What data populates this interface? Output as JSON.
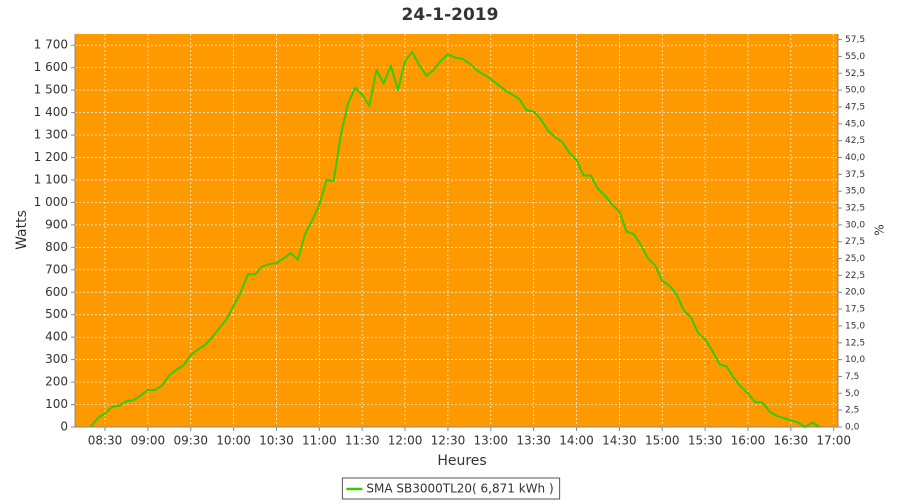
{
  "chart_data": {
    "type": "line",
    "title": "24-1-2019",
    "xlabel": "Heures",
    "ylabel": "Watts",
    "y2label": "%",
    "plot_background": "#ff9900",
    "grid": true,
    "legend": "bottom",
    "x": [
      "08:20",
      "08:25",
      "08:30",
      "08:35",
      "08:40",
      "08:45",
      "08:50",
      "08:55",
      "09:00",
      "09:05",
      "09:10",
      "09:15",
      "09:20",
      "09:25",
      "09:30",
      "09:35",
      "09:40",
      "09:45",
      "09:50",
      "09:55",
      "10:00",
      "10:05",
      "10:10",
      "10:15",
      "10:20",
      "10:25",
      "10:30",
      "10:35",
      "10:40",
      "10:45",
      "10:50",
      "10:55",
      "11:00",
      "11:05",
      "11:10",
      "11:15",
      "11:20",
      "11:25",
      "11:30",
      "11:35",
      "11:40",
      "11:45",
      "11:50",
      "11:55",
      "12:00",
      "12:05",
      "12:10",
      "12:15",
      "12:20",
      "12:25",
      "12:30",
      "12:35",
      "12:40",
      "12:45",
      "12:50",
      "12:55",
      "13:00",
      "13:05",
      "13:10",
      "13:15",
      "13:20",
      "13:25",
      "13:30",
      "13:35",
      "13:40",
      "13:45",
      "13:50",
      "13:55",
      "14:00",
      "14:05",
      "14:10",
      "14:15",
      "14:20",
      "14:25",
      "14:30",
      "14:35",
      "14:40",
      "14:45",
      "14:50",
      "14:55",
      "15:00",
      "15:05",
      "15:10",
      "15:15",
      "15:20",
      "15:25",
      "15:30",
      "15:35",
      "15:40",
      "15:45",
      "15:50",
      "15:55",
      "16:00",
      "16:05",
      "16:10",
      "16:15",
      "16:20",
      "16:25",
      "16:30",
      "16:35",
      "16:40",
      "16:45",
      "16:50"
    ],
    "series": [
      {
        "name": "SMA SB3000TL20( 6,871 kWh )",
        "color": "#33cc00",
        "values": [
          0,
          40,
          60,
          90,
          95,
          115,
          120,
          140,
          165,
          165,
          185,
          230,
          255,
          275,
          320,
          345,
          365,
          400,
          440,
          480,
          540,
          600,
          680,
          680,
          715,
          725,
          730,
          750,
          775,
          745,
          860,
          920,
          990,
          1100,
          1095,
          1300,
          1440,
          1510,
          1480,
          1430,
          1590,
          1530,
          1610,
          1500,
          1630,
          1670,
          1610,
          1565,
          1590,
          1630,
          1660,
          1645,
          1640,
          1620,
          1590,
          1570,
          1550,
          1525,
          1500,
          1480,
          1460,
          1410,
          1405,
          1370,
          1320,
          1290,
          1270,
          1220,
          1190,
          1120,
          1120,
          1060,
          1030,
          990,
          960,
          870,
          860,
          810,
          750,
          720,
          650,
          630,
          590,
          520,
          490,
          420,
          390,
          340,
          280,
          270,
          220,
          180,
          150,
          110,
          110,
          70,
          50,
          40,
          30,
          20,
          0,
          20,
          0
        ]
      }
    ],
    "xlim": [
      "08:09",
      "17:03"
    ],
    "xticks": [
      "08:30",
      "09:00",
      "09:30",
      "10:00",
      "10:30",
      "11:00",
      "11:30",
      "12:00",
      "12:30",
      "13:00",
      "13:30",
      "14:00",
      "14:30",
      "15:00",
      "15:30",
      "16:00",
      "16:30",
      "17:00"
    ],
    "ylim": [
      0,
      1750
    ],
    "yticks": [
      0,
      100,
      200,
      300,
      400,
      500,
      600,
      700,
      800,
      900,
      {
        "value": 1000,
        "label": "1 000"
      },
      {
        "value": 1100,
        "label": "1 100"
      },
      {
        "value": 1200,
        "label": "1 200"
      },
      {
        "value": 1300,
        "label": "1 300"
      },
      {
        "value": 1400,
        "label": "1 400"
      },
      {
        "value": 1500,
        "label": "1 500"
      },
      {
        "value": 1600,
        "label": "1 600"
      },
      {
        "value": 1700,
        "label": "1 700"
      }
    ],
    "y2lim": [
      0,
      58.33
    ],
    "y2ticks": [
      {
        "value": 0,
        "label": "0,0"
      },
      {
        "value": 2.5,
        "label": "2,5"
      },
      {
        "value": 5,
        "label": "5,0"
      },
      {
        "value": 7.5,
        "label": "7,5"
      },
      {
        "value": 10,
        "label": "10,0"
      },
      {
        "value": 12.5,
        "label": "12,5"
      },
      {
        "value": 15,
        "label": "15,0"
      },
      {
        "value": 17.5,
        "label": "17,5"
      },
      {
        "value": 20,
        "label": "20,0"
      },
      {
        "value": 22.5,
        "label": "22,5"
      },
      {
        "value": 25,
        "label": "25,0"
      },
      {
        "value": 27.5,
        "label": "27,5"
      },
      {
        "value": 30,
        "label": "30,0"
      },
      {
        "value": 32.5,
        "label": "32,5"
      },
      {
        "value": 35,
        "label": "35,0"
      },
      {
        "value": 37.5,
        "label": "37,5"
      },
      {
        "value": 40,
        "label": "40,0"
      },
      {
        "value": 42.5,
        "label": "42,5"
      },
      {
        "value": 45,
        "label": "45,0"
      },
      {
        "value": 47.5,
        "label": "47,5"
      },
      {
        "value": 50,
        "label": "50,0"
      },
      {
        "value": 52.5,
        "label": "52,5"
      },
      {
        "value": 55,
        "label": "55,0"
      },
      {
        "value": 57.5,
        "label": "57,5"
      }
    ]
  }
}
